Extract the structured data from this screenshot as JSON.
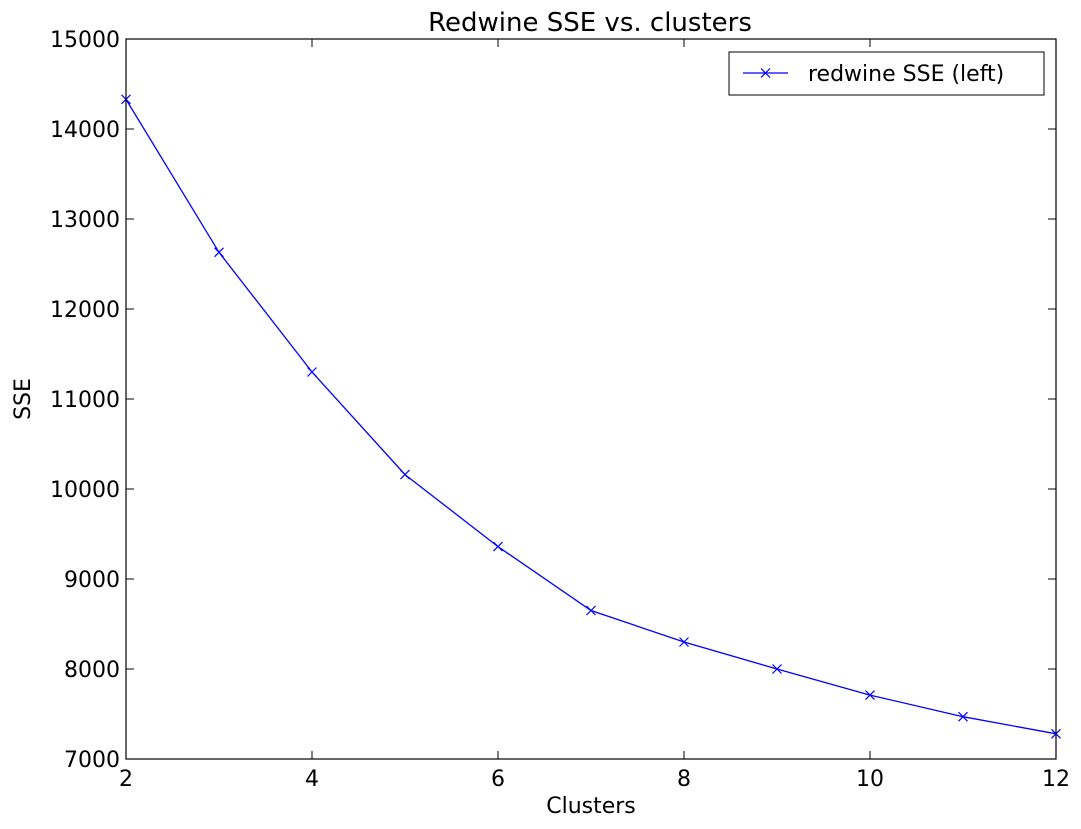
{
  "chart_data": {
    "type": "line",
    "title": "Redwine  SSE vs. clusters",
    "xlabel": "Clusters",
    "ylabel": "SSE",
    "xlim": [
      2,
      12
    ],
    "ylim": [
      7000,
      15000
    ],
    "xticks": [
      2,
      4,
      6,
      8,
      10,
      12
    ],
    "yticks": [
      7000,
      8000,
      9000,
      10000,
      11000,
      12000,
      13000,
      14000,
      15000
    ],
    "grid": false,
    "legend_position": "top-right",
    "series": [
      {
        "name": "redwine SSE (left)",
        "color": "#0000ff",
        "marker": "x",
        "x": [
          2,
          3,
          4,
          5,
          6,
          7,
          8,
          9,
          10,
          11,
          12
        ],
        "y": [
          14330,
          12630,
          11300,
          10160,
          9360,
          8650,
          8300,
          8000,
          7710,
          7470,
          7280
        ]
      }
    ]
  }
}
